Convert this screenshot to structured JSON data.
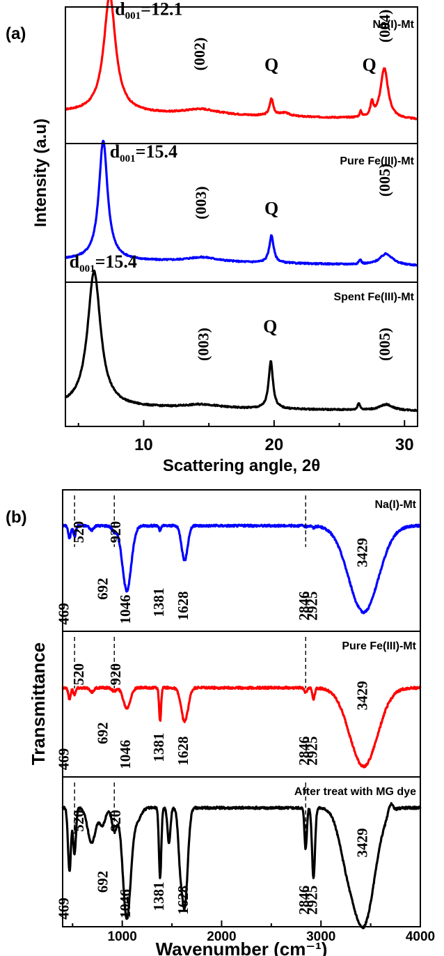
{
  "chart_data": [
    {
      "panel_label": "(a)",
      "type": "line",
      "xlabel": "Scattering angle, 2θ",
      "ylabel": "Intensity (a.u)",
      "xlim": [
        4,
        31
      ],
      "x_ticks": [
        10,
        20,
        30
      ],
      "stacked_panels": true,
      "series": [
        {
          "name": "Na(I)-Mt",
          "color": "#ff0000",
          "baseline": 0.18,
          "slope": -0.0025,
          "peaks": [
            {
              "x": 7.4,
              "h": 1.05,
              "w": 0.55
            },
            {
              "x": 14.4,
              "h": 0.05,
              "w": 1.6
            },
            {
              "x": 19.8,
              "h": 0.15,
              "w": 0.17
            },
            {
              "x": 20.8,
              "h": 0.03,
              "w": 0.5
            },
            {
              "x": 26.65,
              "h": 0.05,
              "w": 0.09
            },
            {
              "x": 27.5,
              "h": 0.12,
              "w": 0.13
            },
            {
              "x": 28.45,
              "h": 0.45,
              "w": 0.35
            }
          ],
          "annotations": [
            {
              "text": "(002)",
              "x": 14.4,
              "y": 0.7,
              "rotate": true
            },
            {
              "text": "Q",
              "x": 19.8,
              "y": 0.55
            },
            {
              "text": "Q",
              "x": 27.3,
              "y": 0.55
            },
            {
              "text": "(004)",
              "x": 28.6,
              "y": 0.95,
              "rotate": true
            }
          ],
          "d_label": {
            "main": "d",
            "sub": "001",
            "value": "=12.1",
            "x": 7.8,
            "y": 1.05
          }
        },
        {
          "name": "Pure Fe(III)-Mt",
          "color": "#0000ff",
          "baseline": 0.1,
          "slope": -0.002,
          "peaks": [
            {
              "x": 6.9,
              "h": 1.05,
              "w": 0.4
            },
            {
              "x": 14.5,
              "h": 0.04,
              "w": 1.5
            },
            {
              "x": 19.8,
              "h": 0.24,
              "w": 0.2
            },
            {
              "x": 26.6,
              "h": 0.04,
              "w": 0.1
            },
            {
              "x": 28.6,
              "h": 0.1,
              "w": 0.6
            }
          ],
          "annotations": [
            {
              "text": "(003)",
              "x": 14.5,
              "y": 0.6,
              "rotate": true
            },
            {
              "text": "Q",
              "x": 19.8,
              "y": 0.5
            },
            {
              "text": "(005)",
              "x": 28.6,
              "y": 0.8,
              "rotate": true
            }
          ],
          "d_label": {
            "main": "d",
            "sub": "001",
            "value": "=15.4",
            "x": 7.4,
            "y": 1.0
          }
        },
        {
          "name": "Spent Fe(III)-Mt",
          "color": "#000000",
          "baseline": 0.07,
          "slope": -0.0012,
          "peaks": [
            {
              "x": 6.2,
              "h": 1.15,
              "w": 0.6
            },
            {
              "x": 14.5,
              "h": 0.03,
              "w": 1.6
            },
            {
              "x": 19.75,
              "h": 0.4,
              "w": 0.2
            },
            {
              "x": 26.5,
              "h": 0.06,
              "w": 0.1
            },
            {
              "x": 28.6,
              "h": 0.05,
              "w": 0.6
            }
          ],
          "annotations": [
            {
              "text": "(003)",
              "x": 14.7,
              "y": 0.6,
              "rotate": true
            },
            {
              "text": "Q",
              "x": 19.7,
              "y": 0.7
            },
            {
              "text": "(005)",
              "x": 28.6,
              "y": 0.6,
              "rotate": true
            }
          ],
          "d_label": {
            "main": "d",
            "sub": "001",
            "value": "=15.4",
            "x": 4.3,
            "y": 1.25
          }
        }
      ]
    },
    {
      "panel_label": "(b)",
      "type": "line",
      "xlabel": "Wavenumber (cm⁻¹)",
      "ylabel": "Transmittance",
      "xlim": [
        400,
        4000
      ],
      "x_ticks": [
        1000,
        2000,
        3000,
        4000
      ],
      "stacked_panels": true,
      "series": [
        {
          "name": "Na(I)-Mt",
          "color": "#0000ff",
          "baseline": 0.9,
          "slope": 0,
          "dips": [
            {
              "x": 469,
              "d": 0.12,
              "w": 12
            },
            {
              "x": 520,
              "d": 0.1,
              "w": 12
            },
            {
              "x": 692,
              "d": 0.04,
              "w": 20
            },
            {
              "x": 920,
              "d": 0.05,
              "w": 25
            },
            {
              "x": 1046,
              "d": 0.6,
              "w": 45
            },
            {
              "x": 1381,
              "d": 0.05,
              "w": 10
            },
            {
              "x": 1628,
              "d": 0.32,
              "w": 30
            },
            {
              "x": 2846,
              "d": 0.01,
              "w": 10
            },
            {
              "x": 2925,
              "d": 0.02,
              "w": 10
            },
            {
              "x": 3429,
              "d": 0.8,
              "w": 150
            }
          ]
        },
        {
          "name": "Pure Fe(III)-Mt",
          "color": "#ff0000",
          "baseline": 0.72,
          "slope": 0,
          "dips": [
            {
              "x": 469,
              "d": 0.1,
              "w": 12
            },
            {
              "x": 520,
              "d": 0.06,
              "w": 12
            },
            {
              "x": 692,
              "d": 0.04,
              "w": 20
            },
            {
              "x": 920,
              "d": 0.03,
              "w": 20
            },
            {
              "x": 1046,
              "d": 0.18,
              "w": 35
            },
            {
              "x": 1381,
              "d": 0.3,
              "w": 10
            },
            {
              "x": 1628,
              "d": 0.3,
              "w": 35
            },
            {
              "x": 2846,
              "d": 0.04,
              "w": 12
            },
            {
              "x": 2925,
              "d": 0.1,
              "w": 12
            },
            {
              "x": 3429,
              "d": 0.7,
              "w": 140
            }
          ]
        },
        {
          "name": "After treat with MG dye",
          "color": "#000000",
          "baseline": 0.95,
          "slope": 0,
          "dips": [
            {
              "x": 469,
              "d": 0.55,
              "w": 15
            },
            {
              "x": 520,
              "d": 0.4,
              "w": 14
            },
            {
              "x": 692,
              "d": 0.3,
              "w": 40
            },
            {
              "x": 800,
              "d": 0.15,
              "w": 30
            },
            {
              "x": 920,
              "d": 0.2,
              "w": 25
            },
            {
              "x": 1046,
              "d": 0.95,
              "w": 40
            },
            {
              "x": 1150,
              "d": 0.1,
              "w": 40
            },
            {
              "x": 1381,
              "d": 0.6,
              "w": 12
            },
            {
              "x": 1470,
              "d": 0.3,
              "w": 15
            },
            {
              "x": 1580,
              "d": 0.3,
              "w": 20
            },
            {
              "x": 1628,
              "d": 0.85,
              "w": 30
            },
            {
              "x": 2846,
              "d": 0.35,
              "w": 12
            },
            {
              "x": 2925,
              "d": 0.6,
              "w": 15
            },
            {
              "x": 3250,
              "d": 0.3,
              "w": 80
            },
            {
              "x": 3429,
              "d": 1.0,
              "w": 110
            },
            {
              "x": 3700,
              "d": -0.08,
              "w": 20
            }
          ]
        }
      ],
      "band_labels": [
        {
          "text": "469",
          "x": 469
        },
        {
          "text": "520",
          "x": 520
        },
        {
          "text": "692",
          "x": 692
        },
        {
          "text": "920",
          "x": 920
        },
        {
          "text": "1046",
          "x": 1046
        },
        {
          "text": "1381",
          "x": 1381
        },
        {
          "text": "1628",
          "x": 1628
        },
        {
          "text": "2846",
          "x": 2846
        },
        {
          "text": "2925",
          "x": 2925
        },
        {
          "text": "3429",
          "x": 3429
        }
      ]
    }
  ]
}
